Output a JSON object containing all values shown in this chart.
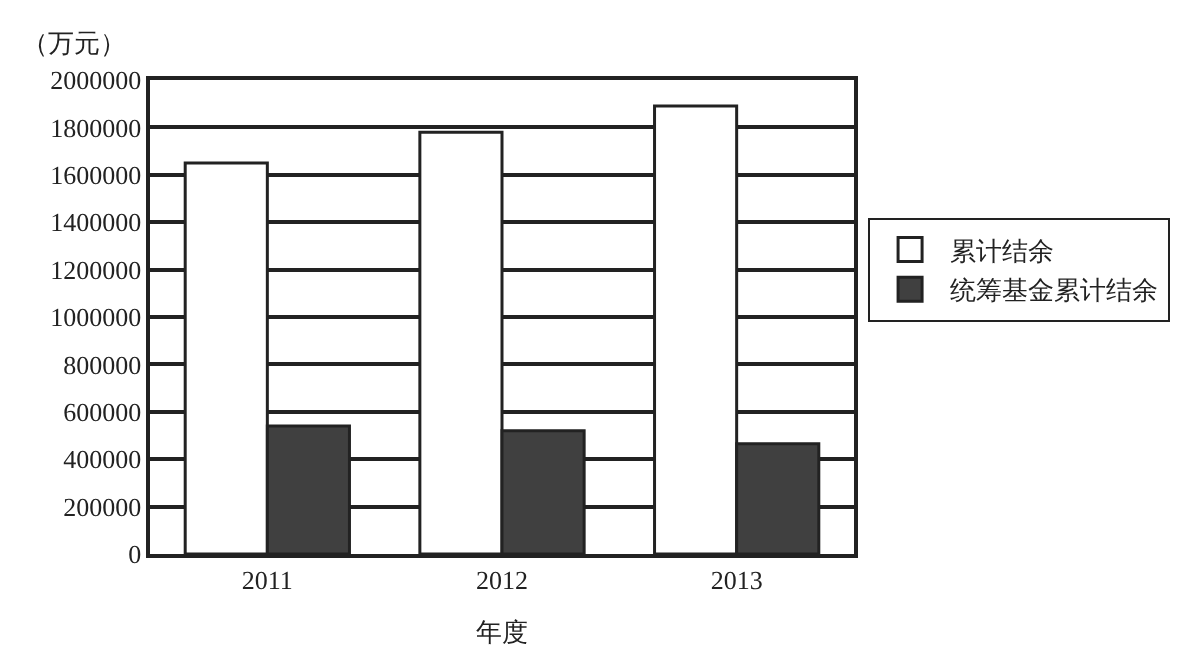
{
  "chart_data": {
    "type": "bar",
    "ylabel": "（万元）",
    "xlabel": "年度",
    "categories": [
      "2011",
      "2012",
      "2013"
    ],
    "series": [
      {
        "name": "累计结余",
        "color": "#ffffff",
        "values": [
          1650000,
          1780000,
          1890000
        ]
      },
      {
        "name": "统筹基金累计结余",
        "color": "#404040",
        "values": [
          540000,
          520000,
          465000
        ]
      }
    ],
    "ylim": [
      0,
      2000000
    ],
    "yticks": [
      0,
      200000,
      400000,
      600000,
      800000,
      1000000,
      1200000,
      1400000,
      1600000,
      1800000,
      2000000
    ],
    "grid": "y",
    "legend": "right"
  }
}
